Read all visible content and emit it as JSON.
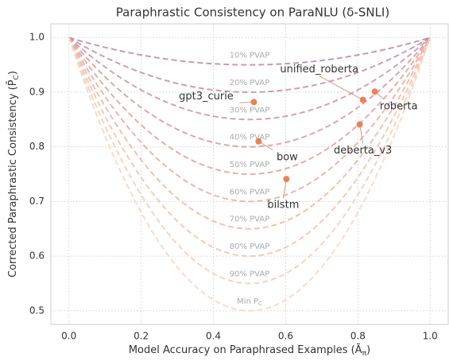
{
  "chart_data": {
    "type": "scatter",
    "title": "Paraphrastic Consistency on ParaNLU (δ-SNLI)",
    "xlabel": "Model Accuracy on Paraphrased Examples (Ā",
    "xlabel_sub": "π",
    "xlabel_end": ")",
    "ylabel": "Corrected Paraphrastic Consistency (P̄",
    "ylabel_sub": "C",
    "ylabel_end": ")",
    "xlim": [
      -0.05,
      1.05
    ],
    "ylim": [
      0.475,
      1.025
    ],
    "xticks": [
      {
        "value": 0,
        "label": "0.0"
      },
      0.2,
      0.4,
      0.6,
      0.8,
      {
        "value": 1,
        "label": "1.0"
      }
    ],
    "yticks": [
      0.5,
      0.6,
      0.7,
      0.8,
      0.9,
      {
        "value": 1,
        "label": "1.0"
      }
    ],
    "grid": true,
    "curves": [
      {
        "label": "10% PVAP",
        "min": 0.95,
        "color": "#b98aa8"
      },
      {
        "label": "20% PVAP",
        "min": 0.9,
        "color": "#c28ea6"
      },
      {
        "label": "30% PVAP",
        "min": 0.85,
        "color": "#cc93a3"
      },
      {
        "label": "40% PVAP",
        "min": 0.8,
        "color": "#d6999f"
      },
      {
        "label": "50% PVAP",
        "min": 0.75,
        "color": "#dfa09d"
      },
      {
        "label": "60% PVAP",
        "min": 0.7,
        "color": "#e7aa9f"
      },
      {
        "label": "70% PVAP",
        "min": 0.65,
        "color": "#edb5a5"
      },
      {
        "label": "80% PVAP",
        "min": 0.6,
        "color": "#f1c1ae"
      },
      {
        "label": "90% PVAP",
        "min": 0.55,
        "color": "#f4ccb8"
      },
      {
        "label": "Min P",
        "label_sub": "C",
        "min": 0.5,
        "color": "#f6d6c4"
      }
    ],
    "point_color": "#e8825c",
    "labels": [
      "gpt3_curie",
      "bow",
      "bilstm",
      "deberta_v3",
      "unified_roberta",
      "roberta"
    ],
    "x": [
      0.512,
      0.525,
      0.602,
      0.805,
      0.814,
      0.847
    ],
    "y": [
      0.882,
      0.81,
      0.741,
      0.841,
      0.886,
      0.901
    ]
  }
}
